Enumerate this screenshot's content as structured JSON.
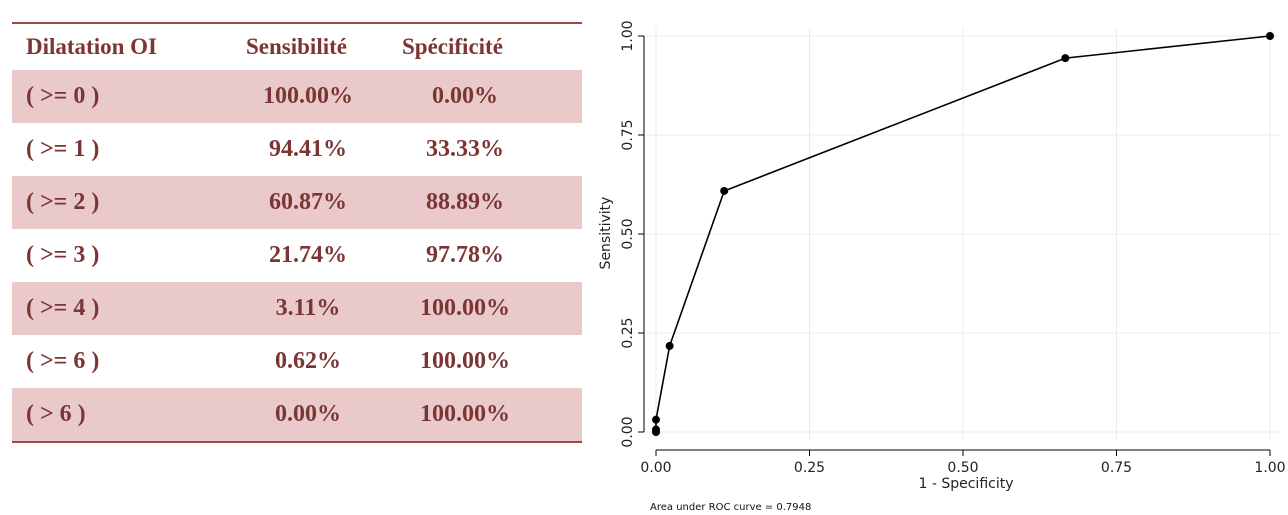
{
  "table": {
    "headers": [
      "Dilatation OI",
      "Sensibilité",
      "Spécificité"
    ],
    "rows": [
      {
        "label": "( >= 0 )",
        "sens": "100.00%",
        "spec": "0.00%"
      },
      {
        "label": "( >= 1 )",
        "sens": "94.41%",
        "spec": "33.33%"
      },
      {
        "label": "( >= 2 )",
        "sens": "60.87%",
        "spec": "88.89%"
      },
      {
        "label": "( >= 3 )",
        "sens": "21.74%",
        "spec": "97.78%"
      },
      {
        "label": "( >= 4 )",
        "sens": "3.11%",
        "spec": "100.00%"
      },
      {
        "label": "( >= 6 )",
        "sens": "0.62%",
        "spec": "100.00%"
      },
      {
        "label": "( > 6 )",
        "sens": "0.00%",
        "spec": "100.00%"
      }
    ],
    "colors": {
      "text": "#7b3535",
      "shade": "#e9c9c9",
      "rule": "#9b4a4a"
    }
  },
  "chart_data": {
    "type": "line",
    "xlabel": "1 - Specificity",
    "ylabel": "Sensitivity",
    "xlim": [
      0,
      1
    ],
    "ylim": [
      0,
      1
    ],
    "xticks": [
      0,
      0.25,
      0.5,
      0.75,
      1
    ],
    "yticks": [
      0,
      0.25,
      0.5,
      0.75,
      1
    ],
    "xtick_labels": [
      "0.00",
      "0.25",
      "0.50",
      "0.75",
      "1.00"
    ],
    "ytick_labels": [
      "0.00",
      "0.25",
      "0.50",
      "0.75",
      "1.00"
    ],
    "grid": true,
    "markers": true,
    "series": [
      {
        "x": [
          0,
          0,
          0,
          0.0222,
          0.1111,
          0.6667,
          1
        ],
        "y": [
          0,
          0.0062,
          0.0311,
          0.2174,
          0.6087,
          0.9441,
          1
        ]
      }
    ],
    "annotation": "Area under ROC curve = 0.7948",
    "colors": {
      "line": "#000000",
      "grid": "#e4ecf3",
      "axis": "#000000"
    }
  }
}
